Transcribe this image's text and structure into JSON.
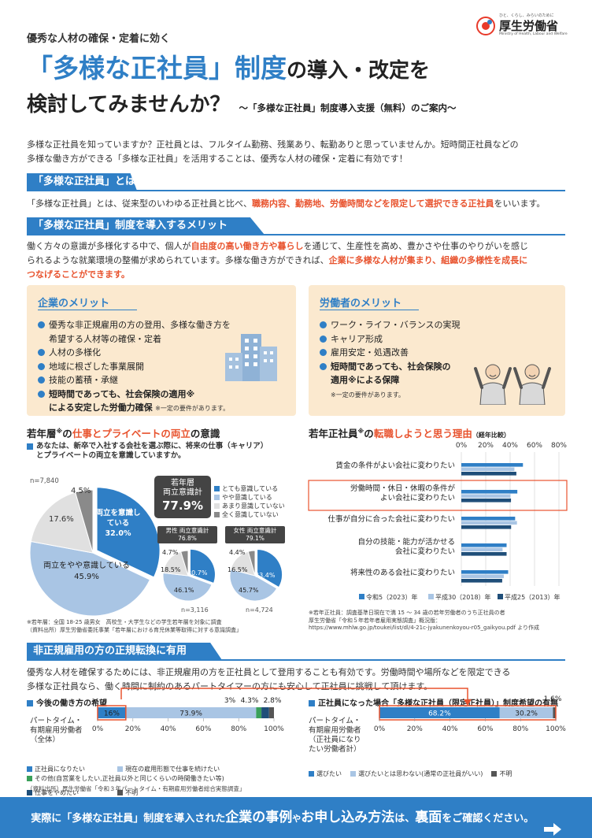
{
  "header": {
    "kicker": "優秀な人材の確保・定着に効く",
    "title_part1": "「多様な正社員」制度",
    "title_part2": "の導入・改定を",
    "title_line2": "検討してみませんか？",
    "subtitle": "〜「多様な正社員」制度導入支援（無料）のご案内〜",
    "logo_small": "ひと、くらし、みらいのために",
    "logo_main": "厚生労働省",
    "logo_en": "Ministry of Health, Labour and Welfare"
  },
  "intro": {
    "line1": "多様な正社員を知っていますか？正社員とは、フルタイム勤務、残業あり、転勤ありと思っていませんか。短時間正社員などの",
    "line2": "多様な働き方ができる「多様な正社員」を活用することは、優秀な人材の確保・定着に有効です！"
  },
  "section1": {
    "heading": "「多様な正社員」とは",
    "text_a": "「多様な正社員」とは、従来型のいわゆる正社員と比べ、",
    "text_hl": "職務内容、勤務地、労働時間などを限定して選択できる正社員",
    "text_b": "をいいます。"
  },
  "section2": {
    "heading": "「多様な正社員」制度を導入するメリット",
    "p1a": "働く方々の意識が多様化する中で、個人が",
    "p1hl": "自由度の高い働き方や暮らし",
    "p1b": "を通じて、生産性を高め、豊かさや仕事のやりがいを感じ",
    "p2a": "られるような就業環境の整備が求められています。多様な働き方ができれば、",
    "p2hl": "企業に多様な人材が集まり、組織の多様性を成長に",
    "p3hl": "つなげることができます。"
  },
  "company_merit": {
    "title": "企業のメリット",
    "items": [
      "優秀な非正規雇用の方の登用、多様な働き方を",
      "希望する人材等の確保・定着",
      "人材の多様化",
      "地域に根ざした事業展開",
      "技能の蓄積・承継",
      "短時間であっても、社会保険の適用※",
      "による安定した労働力確保"
    ],
    "note": "※一定の要件があります。"
  },
  "worker_merit": {
    "title": "労働者のメリット",
    "items": [
      "ワーク・ライフ・バランスの実現",
      "キャリア形成",
      "雇用安定・処遇改善",
      "短時間であっても、社会保険の",
      "適用※による保障"
    ],
    "note": "※一定の要件があります。"
  },
  "pie_section": {
    "title_a": "若年層",
    "title_sup": "※",
    "title_b": "の",
    "title_hl": "仕事とプライベートの両立",
    "title_c": "の意識",
    "question1": "あなたは、新卒で入社する会社を選ぶ際に、将来の仕事（キャリア）",
    "question2": "とプライベートの両立を意識していますか。",
    "n_total": "n=7,840",
    "summary_label1": "若年層",
    "summary_label2": "両立意識計",
    "summary_value": "77.9%",
    "legend": [
      "とても意識している",
      "やや意識している",
      "あまり意識していない",
      "全く意識していない"
    ],
    "male_label": "男性 両立意識計",
    "male_value": "76.8%",
    "female_label": "女性 両立意識計",
    "female_value": "79.1%",
    "male_n": "n=3,116",
    "female_n": "n=4,724",
    "note1": "※若年層：全国 18-25 歳男女　高校生・大学生などの学生若年層を対象に調査",
    "note2": "（資料出所）厚生労働省委託事業「若年層における育児休業等取得に対する意識調査」"
  },
  "bar_section": {
    "title_a": "若年正社員",
    "title_sup": "※",
    "title_b": "の",
    "title_hl": "転職しようと思う理由",
    "title_c": "（経年比較）",
    "note1": "※若年正社員：調査基準日現在で満 15 〜 34 歳の若年労働者のうち正社員の者",
    "note2": "厚生労働省「令和５年若年者雇用実態調査」概況版：",
    "note3": "https://www.mhlw.go.jp/toukei/list/dl/4-21c-jyakunenkoyou-r05_gaikyou.pdf より作成"
  },
  "section3": {
    "heading": "非正規雇用の方の正規転換に有用",
    "line1": "優秀な人材を確保するためには、非正規雇用の方を正社員として登用することも有効です。労働時間や場所などを限定できる",
    "line2": "多様な正社員なら、働く時間に制約のあるパートタイマーの方にも安心して正社員に挑戦して頂けます。",
    "left_title": "今後の働き方の希望",
    "right_title": "正社員になった場合「多様な正社員（限定正社員）」制度希望の有無",
    "left_label1": "パートタイム・",
    "left_label2": "有期雇用労働者",
    "left_label3": "（全体）",
    "right_label1": "パートタイム・",
    "right_label2": "有期雇用労働者",
    "right_label3": "（正社員になり",
    "right_label4": "たい労働者計）",
    "left_legend": [
      "正社員になりたい",
      "現在の雇用形態で仕事を続けたい",
      "その他(自営業をしたい,正社員以外と同じくらいの時間働きたい等)",
      "仕事をやめたい",
      "不明"
    ],
    "right_legend": [
      "選びたい",
      "選びたいとは思わない(通常の正社員がいい)",
      "不明"
    ],
    "source": "（資料出所）厚生労働省「令和３年パートタイム・有期雇用労働者総合実態調査」"
  },
  "bottom": {
    "a": "実際に「多様な正社員」制度を導入された",
    "b": "企業の事例",
    "c": "や",
    "d": "お申し込み方法",
    "e": "は、",
    "f": "裏面",
    "g": "をご確認ください。"
  },
  "colors": {
    "accent": "#2f7fc6",
    "highlight": "#e8532e",
    "merit_bg": "#fbe9cf"
  },
  "chart_data": [
    {
      "type": "pie",
      "title": "",
      "categories": [
        "とても意識している",
        "やや意識している",
        "あまり意識していない",
        "全く意識していない"
      ],
      "values": [
        32.0,
        45.9,
        17.6,
        4.5
      ],
      "labels": [
        "両立を意識している",
        "両立をやや意識している"
      ]
    },
    {
      "type": "pie",
      "title": "男性 両立意識計",
      "categories": [
        "とても意識している",
        "やや意識している",
        "あまり意識していない",
        "全く意識していない"
      ],
      "values": [
        30.7,
        46.1,
        18.5,
        4.7
      ]
    },
    {
      "type": "pie",
      "title": "女性 両立意識計",
      "categories": [
        "とても意識している",
        "やや意識している",
        "あまり意識していない",
        "全く意識していない"
      ],
      "values": [
        33.4,
        45.7,
        16.5,
        4.4
      ]
    },
    {
      "type": "bar",
      "orientation": "horizontal",
      "categories": [
        "賃金の条件がよい会社に変わりたい",
        "労働時間・休日・休暇の条件が\nよい会社に変わりたい",
        "仕事が自分に合った会社に変わりたい",
        "自分の技能・能力が活かせる\n会社に変わりたい",
        "将来性のある会社に変わりたい"
      ],
      "series": [
        {
          "name": "令和5（2023）年",
          "values": [
            50.5,
            45.9,
            44.1,
            37.1,
            38.4
          ]
        },
        {
          "name": "平成30（2018）年",
          "values": [
            43.5,
            40.3,
            45.6,
            33.8,
            34.8
          ]
        },
        {
          "name": "平成25（2013）年",
          "values": [
            45.1,
            40.7,
            40.8,
            37.1,
            33.5
          ]
        }
      ],
      "xticks": [
        "0%",
        "20%",
        "40%",
        "60%",
        "80%"
      ],
      "xlim": [
        0,
        80
      ]
    },
    {
      "type": "bar",
      "orientation": "horizontal-stacked",
      "categories": [
        "パートタイム・有期雇用労働者（全体）"
      ],
      "series": [
        {
          "name": "正社員になりたい",
          "values": [
            16.0
          ]
        },
        {
          "name": "現在の雇用形態で仕事を続けたい",
          "values": [
            73.9
          ]
        },
        {
          "name": "その他",
          "values": [
            3.0
          ]
        },
        {
          "name": "仕事をやめたい",
          "values": [
            4.3
          ]
        },
        {
          "name": "不明",
          "values": [
            2.8
          ]
        }
      ],
      "labels": [
        "16%",
        "73.9%",
        "3%",
        "4.3%",
        "2.8%"
      ],
      "xticks": [
        "0%",
        "20%",
        "40%",
        "60%",
        "80%",
        "100%"
      ],
      "xlim": [
        0,
        100
      ]
    },
    {
      "type": "bar",
      "orientation": "horizontal-stacked",
      "categories": [
        "パートタイム・有期雇用労働者（正社員になりたい労働者計）"
      ],
      "series": [
        {
          "name": "選びたい",
          "values": [
            68.2
          ]
        },
        {
          "name": "選びたいとは思わない",
          "values": [
            30.2
          ]
        },
        {
          "name": "不明",
          "values": [
            1.6
          ]
        }
      ],
      "labels": [
        "68.2%",
        "30.2%",
        "1.6%"
      ],
      "xticks": [
        "0%",
        "20%",
        "40%",
        "60%",
        "80%",
        "100%"
      ],
      "xlim": [
        0,
        100
      ]
    }
  ]
}
